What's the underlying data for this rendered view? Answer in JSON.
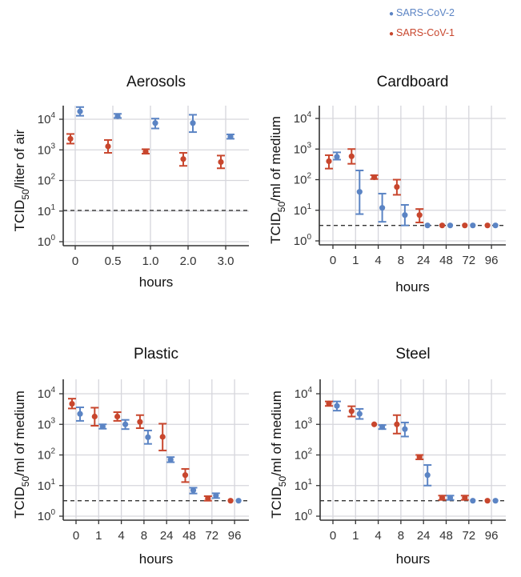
{
  "legend": [
    {
      "label": "SARS-CoV-2",
      "color": "#5b84c4"
    },
    {
      "label": "SARS-CoV-1",
      "color": "#c8462d"
    }
  ],
  "chart_data": [
    {
      "type": "scatter",
      "title": "Aerosols",
      "xlabel": "hours",
      "ylabel": {
        "main": "TCID",
        "sub": "50",
        "rest": "/liter of air"
      },
      "y_scale": "log",
      "y_tick_exponents": [
        0,
        1,
        2,
        3,
        4
      ],
      "ylim": [
        0.75,
        28000
      ],
      "grid": true,
      "detection_limit": 10.5,
      "categories": [
        "0",
        "0.5",
        "1.0",
        "2.0",
        "3.0"
      ],
      "series": [
        {
          "name": "SARS-CoV-2",
          "color": "#5b84c4",
          "values": [
            18000,
            12500,
            7500,
            7500,
            2700
          ],
          "err_low": [
            13000,
            11000,
            5000,
            3800,
            2300
          ],
          "err_high": [
            25000,
            15000,
            10500,
            14000,
            3200
          ]
        },
        {
          "name": "SARS-CoV-1",
          "color": "#c8462d",
          "values": [
            2300,
            1300,
            870,
            500,
            400
          ],
          "err_low": [
            1600,
            800,
            750,
            300,
            250
          ],
          "err_high": [
            3300,
            2100,
            1050,
            800,
            650
          ]
        }
      ]
    },
    {
      "type": "scatter",
      "title": "Cardboard",
      "xlabel": "hours",
      "ylabel": {
        "main": "TCID",
        "sub": "50",
        "rest": "/ml of medium"
      },
      "y_scale": "log",
      "y_tick_exponents": [
        0,
        1,
        2,
        3,
        4
      ],
      "ylim": [
        0.75,
        28000
      ],
      "grid": true,
      "detection_limit": 3.2,
      "categories": [
        "0",
        "1",
        "4",
        "8",
        "24",
        "48",
        "72",
        "96"
      ],
      "series": [
        {
          "name": "SARS-CoV-2",
          "color": "#5b84c4",
          "values": [
            560,
            40,
            12,
            7,
            3.2,
            3.2,
            3.2,
            3.2
          ],
          "err_low": [
            450,
            7.5,
            4.2,
            3.2,
            3.2,
            3.2,
            3.2,
            3.2
          ],
          "err_high": [
            780,
            200,
            35,
            15,
            3.2,
            3.2,
            3.2,
            3.2
          ]
        },
        {
          "name": "SARS-CoV-1",
          "color": "#c8462d",
          "values": [
            400,
            580,
            120,
            58,
            7,
            3.2,
            3.2,
            3.2
          ],
          "err_low": [
            230,
            330,
            105,
            32,
            4,
            3.2,
            3.2,
            3.2
          ],
          "err_high": [
            630,
            1000,
            140,
            100,
            11,
            3.2,
            3.2,
            3.2
          ]
        }
      ]
    },
    {
      "type": "scatter",
      "title": "Plastic",
      "xlabel": "hours",
      "ylabel": {
        "main": "TCID",
        "sub": "50",
        "rest": "/ml of medium"
      },
      "y_scale": "log",
      "y_tick_exponents": [
        0,
        1,
        2,
        3,
        4
      ],
      "ylim": [
        0.75,
        28000
      ],
      "grid": true,
      "detection_limit": 3.2,
      "categories": [
        "0",
        "1",
        "4",
        "8",
        "24",
        "48",
        "72",
        "96"
      ],
      "series": [
        {
          "name": "SARS-CoV-2",
          "color": "#5b84c4",
          "values": [
            2200,
            850,
            1000,
            380,
            70,
            7,
            4.7,
            3.2
          ],
          "err_low": [
            1300,
            720,
            700,
            230,
            58,
            5.5,
            3.9,
            3.2
          ],
          "err_high": [
            3600,
            1000,
            1400,
            630,
            85,
            8.5,
            5.6,
            3.2
          ]
        },
        {
          "name": "SARS-CoV-1",
          "color": "#c8462d",
          "values": [
            4700,
            1800,
            1800,
            1200,
            390,
            22,
            3.8,
            3.2
          ],
          "err_low": [
            3300,
            900,
            1300,
            750,
            140,
            13,
            3.2,
            3.2
          ],
          "err_high": [
            6900,
            3500,
            2500,
            2000,
            1050,
            35,
            4.5,
            3.2
          ]
        }
      ]
    },
    {
      "type": "scatter",
      "title": "Steel",
      "xlabel": "hours",
      "ylabel": {
        "main": "TCID",
        "sub": "50",
        "rest": "/ml of medium"
      },
      "y_scale": "log",
      "y_tick_exponents": [
        0,
        1,
        2,
        3,
        4
      ],
      "ylim": [
        0.75,
        28000
      ],
      "grid": true,
      "detection_limit": 3.2,
      "categories": [
        "0",
        "1",
        "4",
        "8",
        "24",
        "48",
        "72",
        "96"
      ],
      "series": [
        {
          "name": "SARS-CoV-2",
          "color": "#5b84c4",
          "values": [
            4000,
            2200,
            820,
            700,
            22,
            4,
            3.2,
            3.2
          ],
          "err_low": [
            2800,
            1500,
            700,
            400,
            10,
            3.4,
            3.2,
            3.2
          ],
          "err_high": [
            5600,
            3200,
            950,
            1150,
            47,
            4.7,
            3.2,
            3.2
          ]
        },
        {
          "name": "SARS-CoV-1",
          "color": "#c8462d",
          "values": [
            4800,
            2700,
            1000,
            1000,
            85,
            4,
            4,
            3.2
          ],
          "err_low": [
            4000,
            1800,
            1000,
            500,
            72,
            3.4,
            3.4,
            3.2
          ],
          "err_high": [
            5600,
            3900,
            1000,
            2000,
            100,
            4.7,
            4.7,
            3.2
          ]
        }
      ]
    }
  ]
}
